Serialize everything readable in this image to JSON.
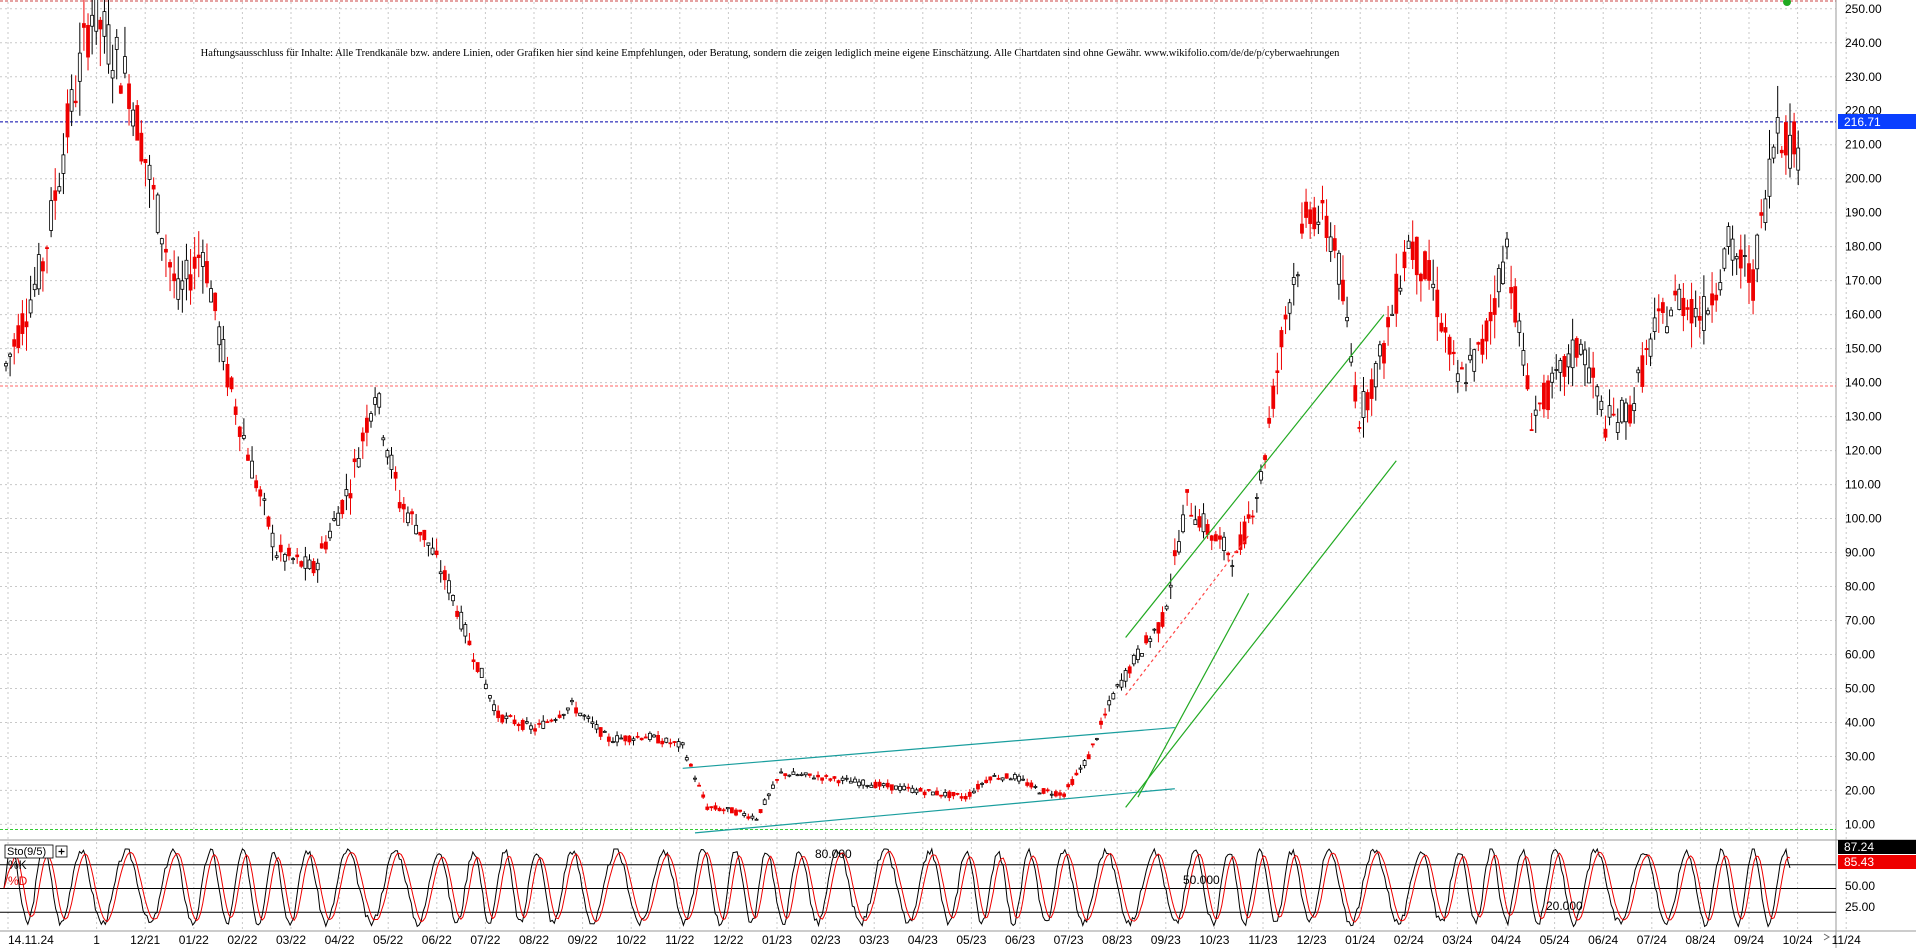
{
  "chart_data": [
    {
      "type": "candlestick",
      "disclaimer": "Haftungsausschluss für Inhalte: Alle Trendkanäle bzw. andere Linien, oder Grafiken hier sind keine Empfehlungen, oder Beratung, sondern die zeigen lediglich meine eigene Einschätzung. Alle Chartdaten sind ohne Gewähr. www.wikifolio.com/de/de/p/cyberwaehrungen",
      "ylim": [
        6,
        252
      ],
      "y_ticks": [
        10,
        20,
        30,
        40,
        50,
        60,
        70,
        80,
        90,
        100,
        110,
        120,
        130,
        140,
        150,
        160,
        170,
        180,
        190,
        200,
        210,
        220,
        230,
        240,
        250
      ],
      "y_tick_labels": [
        "10.00",
        "20.00",
        "30.00",
        "40.00",
        "50.00",
        "60.00",
        "70.00",
        "80.00",
        "90.00",
        "100.00",
        "110.00",
        "120.00",
        "130.00",
        "140.00",
        "150.00",
        "160.00",
        "170.00",
        "180.00",
        "190.00",
        "200.00",
        "210.00",
        "220.00",
        "230.00",
        "240.00",
        "250.00"
      ],
      "x_labels": [
        "14.11.24",
        "1",
        "12/21",
        "01/22",
        "02/22",
        "03/22",
        "04/22",
        "05/22",
        "06/22",
        "07/22",
        "08/22",
        "09/22",
        "10/22",
        "11/22",
        "12/22",
        "01/23",
        "02/23",
        "03/23",
        "04/23",
        "05/23",
        "06/23",
        "07/23",
        "08/23",
        "09/23",
        "10/23",
        "11/23",
        "12/23",
        "01/24",
        "02/24",
        "03/24",
        "04/24",
        "05/24",
        "06/24",
        "07/24",
        "08/24",
        "09/24",
        "10/24",
        "11/24"
      ],
      "last_price": 216.71,
      "last_price_label": "216.71",
      "resistance_level": 139,
      "price_path": [
        [
          0,
          145
        ],
        [
          3,
          175
        ],
        [
          5,
          215
        ],
        [
          7,
          250
        ],
        [
          10,
          228
        ],
        [
          12,
          195
        ],
        [
          14,
          165
        ],
        [
          16,
          180
        ],
        [
          18,
          142
        ],
        [
          20,
          115
        ],
        [
          22,
          90
        ],
        [
          25,
          85
        ],
        [
          28,
          110
        ],
        [
          30,
          138
        ],
        [
          32,
          105
        ],
        [
          34,
          95
        ],
        [
          36,
          80
        ],
        [
          38,
          60
        ],
        [
          40,
          42
        ],
        [
          43,
          38
        ],
        [
          46,
          45
        ],
        [
          49,
          35
        ],
        [
          52,
          36
        ],
        [
          55,
          33
        ],
        [
          57,
          15
        ],
        [
          59,
          14
        ],
        [
          61,
          12
        ],
        [
          63,
          25
        ],
        [
          66,
          24
        ],
        [
          70,
          22
        ],
        [
          74,
          20
        ],
        [
          78,
          18
        ],
        [
          80,
          24
        ],
        [
          82,
          24
        ],
        [
          84,
          20
        ],
        [
          86,
          19
        ],
        [
          88,
          30
        ],
        [
          90,
          48
        ],
        [
          92,
          60
        ],
        [
          94,
          70
        ],
        [
          96,
          105
        ],
        [
          98,
          95
        ],
        [
          100,
          88
        ],
        [
          102,
          112
        ],
        [
          104,
          160
        ],
        [
          106,
          192
        ],
        [
          108,
          182
        ],
        [
          110,
          130
        ],
        [
          112,
          150
        ],
        [
          114,
          182
        ],
        [
          116,
          168
        ],
        [
          118,
          140
        ],
        [
          120,
          150
        ],
        [
          122,
          180
        ],
        [
          124,
          130
        ],
        [
          126,
          140
        ],
        [
          128,
          152
        ],
        [
          130,
          128
        ],
        [
          132,
          132
        ],
        [
          134,
          155
        ],
        [
          136,
          165
        ],
        [
          138,
          160
        ],
        [
          140,
          180
        ],
        [
          142,
          170
        ],
        [
          144,
          218
        ],
        [
          145,
          210
        ]
      ],
      "horizontal_levels": [
        {
          "value": 216.71,
          "color": "#0000aa"
        },
        {
          "value": 139,
          "color": "#ff6666"
        },
        {
          "value": 8.5,
          "color": "#33cc33"
        }
      ],
      "trend_channels": [
        {
          "color": "#1a9e9e",
          "lines": [
            [
              [
                55,
                26.5
              ],
              [
                95,
                38.5
              ]
            ],
            [
              [
                56,
                7.5
              ],
              [
                95,
                20.5
              ]
            ]
          ]
        },
        {
          "color": "#22aa22",
          "lines": [
            [
              [
                91,
                65
              ],
              [
                112,
                160
              ]
            ],
            [
              [
                91,
                15
              ],
              [
                113,
                117
              ]
            ],
            [
              [
                92,
                18
              ],
              [
                101,
                78
              ]
            ]
          ]
        },
        {
          "color": "#ff4444",
          "dashed": true,
          "lines": [
            [
              [
                91,
                48
              ],
              [
                101,
                95
              ]
            ]
          ]
        }
      ],
      "series_colors": {
        "up": "#000000",
        "down": "#ee0000"
      }
    },
    {
      "type": "line",
      "indicator_label": "Sto(9/5)",
      "ylim": [
        0,
        105
      ],
      "level_lines": [
        80,
        50,
        20
      ],
      "level_labels": [
        "80.000",
        "50.000",
        "20.000"
      ],
      "right_labels": [
        "50.00",
        "25.00"
      ],
      "k_value": 87.24,
      "k_value_label": "87.24",
      "d_value": 85.43,
      "d_value_label": "85.43",
      "series": [
        {
          "name": "%K",
          "color": "#000000"
        },
        {
          "name": "%D",
          "color": "#ee0000"
        }
      ]
    }
  ]
}
